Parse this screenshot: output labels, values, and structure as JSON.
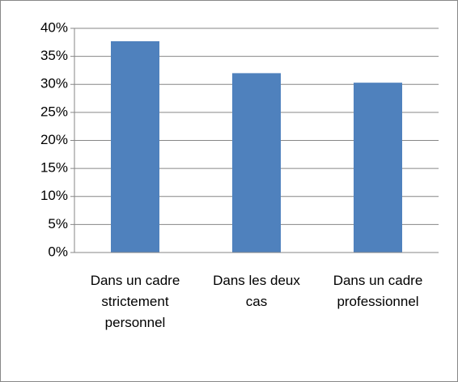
{
  "chart_data": {
    "type": "bar",
    "categories": [
      "Dans un cadre strictement personnel",
      "Dans les deux cas",
      "Dans un cadre professionnel"
    ],
    "values": [
      37.7,
      32,
      30.3
    ],
    "color": "#4f81bd",
    "ylim": [
      0,
      40
    ],
    "yticks": [
      {
        "value": 0,
        "label": "0%"
      },
      {
        "value": 5,
        "label": "5%"
      },
      {
        "value": 10,
        "label": "10%"
      },
      {
        "value": 15,
        "label": "15%"
      },
      {
        "value": 20,
        "label": "20%"
      },
      {
        "value": 25,
        "label": "25%"
      },
      {
        "value": 30,
        "label": "30%"
      },
      {
        "value": 35,
        "label": "35%"
      },
      {
        "value": 40,
        "label": "40%"
      }
    ],
    "grid": true
  }
}
